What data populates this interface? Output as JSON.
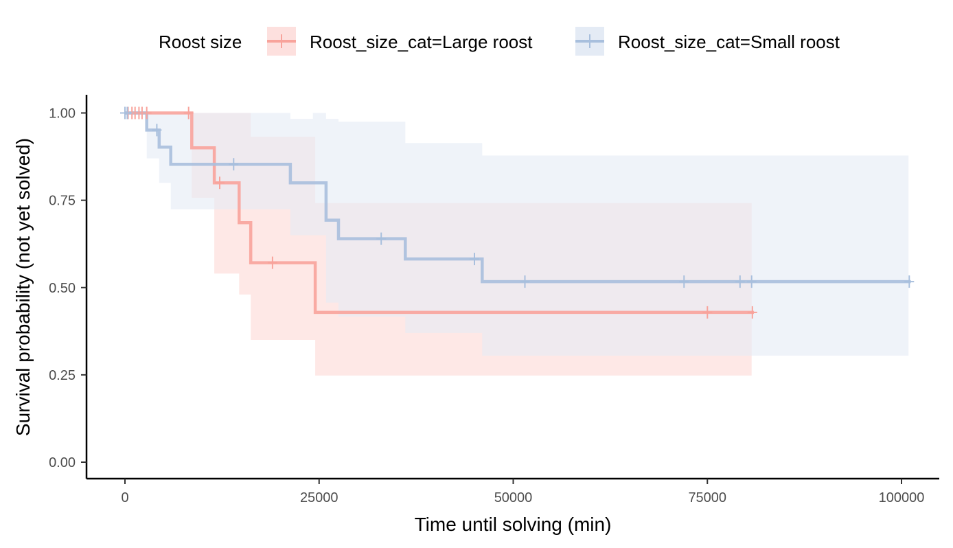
{
  "chart_data": {
    "type": "line",
    "subtype": "kaplan-meier survival curve with confidence bands",
    "xlabel": "Time until solving (min)",
    "ylabel": "Survival probability (not yet solved)",
    "xlim": [
      -5000,
      104000
    ],
    "ylim": [
      -0.05,
      1.05
    ],
    "x_ticks": [
      0,
      25000,
      50000,
      75000,
      100000
    ],
    "x_tick_labels": [
      "0",
      "25000",
      "50000",
      "75000",
      "100000"
    ],
    "y_ticks": [
      0,
      0.25,
      0.5,
      0.75,
      1.0
    ],
    "y_tick_labels": [
      "0.00",
      "0.25",
      "0.50",
      "0.75",
      "1.00"
    ],
    "grid": false,
    "legend": {
      "title": "Roost size",
      "placement": "top"
    },
    "series": [
      {
        "name": "Roost_size_cat=Large roost",
        "color": "#F8A39B",
        "fill": "#FDE0DE",
        "step": [
          {
            "x": 0,
            "y": 1.0,
            "lower": 1.0,
            "upper": 1.0
          },
          {
            "x": 8600,
            "y": 0.9,
            "lower": 0.757,
            "upper": 1.0
          },
          {
            "x": 11500,
            "y": 0.8,
            "lower": 0.54,
            "upper": 1.0
          },
          {
            "x": 14700,
            "y": 0.686,
            "lower": 0.48,
            "upper": 1.0
          },
          {
            "x": 16200,
            "y": 0.571,
            "lower": 0.35,
            "upper": 0.932
          },
          {
            "x": 24500,
            "y": 0.429,
            "lower": 0.248,
            "upper": 0.742
          }
        ],
        "end_x": 81000,
        "band_end_x": 80700,
        "censored": [
          {
            "x": 400,
            "y": 1.0
          },
          {
            "x": 900,
            "y": 1.0
          },
          {
            "x": 1300,
            "y": 1.0
          },
          {
            "x": 1800,
            "y": 1.0
          },
          {
            "x": 2200,
            "y": 1.0
          },
          {
            "x": 2800,
            "y": 1.0
          },
          {
            "x": 8200,
            "y": 1.0
          },
          {
            "x": 12200,
            "y": 0.8
          },
          {
            "x": 19000,
            "y": 0.571
          },
          {
            "x": 75000,
            "y": 0.429
          },
          {
            "x": 80800,
            "y": 0.429
          }
        ]
      },
      {
        "name": "Roost_size_cat=Small roost",
        "color": "#A8BFDD",
        "fill": "#E4EBF5",
        "step": [
          {
            "x": 0,
            "y": 1.0,
            "lower": 1.0,
            "upper": 1.0
          },
          {
            "x": 2800,
            "y": 0.951,
            "lower": 0.87,
            "upper": 1.0
          },
          {
            "x": 4400,
            "y": 0.902,
            "lower": 0.8,
            "upper": 1.0
          },
          {
            "x": 5900,
            "y": 0.853,
            "lower": 0.724,
            "upper": 1.0
          },
          {
            "x": 21300,
            "y": 0.8,
            "lower": 0.65,
            "upper": 0.983
          },
          {
            "x": 24200,
            "y": 0.8,
            "lower": 0.65,
            "upper": 0.983
          },
          {
            "x": 25900,
            "y": 0.693,
            "lower": 0.457,
            "upper": 0.983
          },
          {
            "x": 27500,
            "y": 0.64,
            "lower": 0.417,
            "upper": 0.975
          },
          {
            "x": 36100,
            "y": 0.582,
            "lower": 0.37,
            "upper": 0.914
          },
          {
            "x": 46000,
            "y": 0.517,
            "lower": 0.305,
            "upper": 0.878
          }
        ],
        "end_x": 101200,
        "band_end_x": 100900,
        "band_upper_overrides": [
          {
            "from": 24200,
            "to": 25900,
            "upper": 1.0
          }
        ],
        "censored": [
          {
            "x": 0,
            "y": 1.0
          },
          {
            "x": 300,
            "y": 1.0
          },
          {
            "x": 4100,
            "y": 0.951
          },
          {
            "x": 14000,
            "y": 0.853
          },
          {
            "x": 33000,
            "y": 0.64
          },
          {
            "x": 45000,
            "y": 0.582
          },
          {
            "x": 51500,
            "y": 0.517
          },
          {
            "x": 72000,
            "y": 0.517
          },
          {
            "x": 79200,
            "y": 0.517
          },
          {
            "x": 80700,
            "y": 0.517
          },
          {
            "x": 101000,
            "y": 0.517
          }
        ]
      }
    ]
  }
}
